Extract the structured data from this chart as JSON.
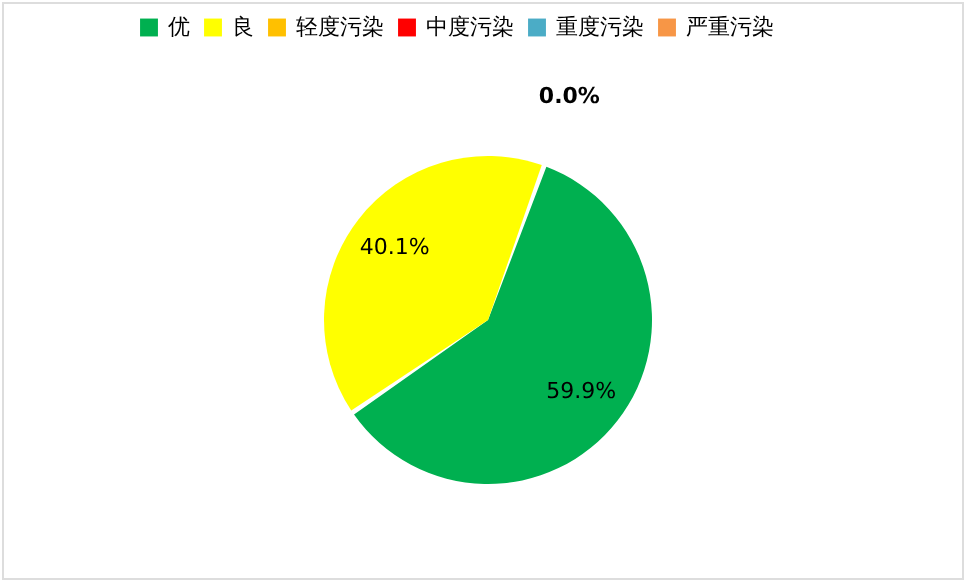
{
  "chart_data": {
    "type": "pie",
    "categories": [
      "优",
      "良",
      "轻度污染",
      "中度污染",
      "重度污染",
      "严重污染"
    ],
    "values": [
      59.9,
      40.1,
      0.0,
      0.0,
      0.0,
      0.0
    ],
    "colors": [
      "#00b050",
      "#ffff00",
      "#ffc000",
      "#ff0000",
      "#4bacc6",
      "#f79646"
    ],
    "value_labels": [
      "59.9%",
      "40.1%",
      "0.0%",
      null,
      null,
      null
    ],
    "legend": "top"
  }
}
